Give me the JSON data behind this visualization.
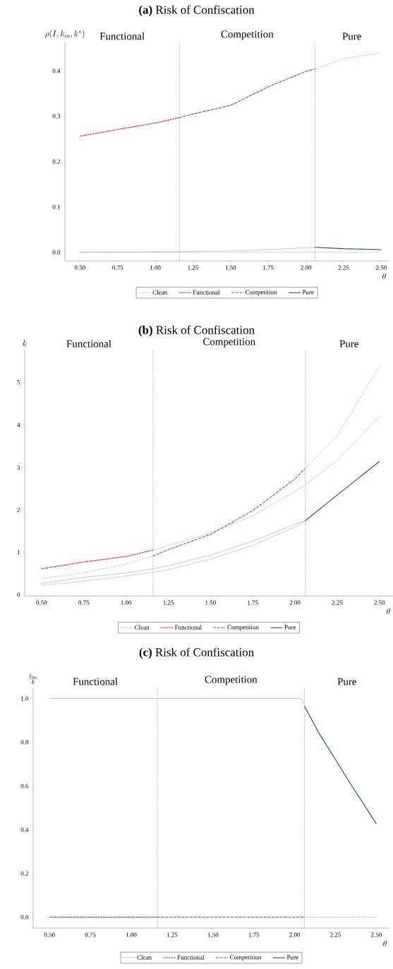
{
  "chart_data": [
    {
      "type": "line",
      "title": "**(a)** Risk of Confiscation",
      "xlabel": "\\theta",
      "ylabel": "\\rho(I,k_m,k^{*})",
      "annotations": [
        "Functional",
        "Competition",
        "Pure"
      ],
      "xlim": [
        0.4,
        2.55
      ],
      "ylim": [
        -0.019,
        0.463
      ],
      "xticks": [
        {
          "value": 0.5,
          "label": "0.50"
        },
        {
          "value": 0.75,
          "label": "0.75"
        },
        {
          "value": 1.0,
          "label": "1.00"
        },
        {
          "value": 1.25,
          "label": "1.25"
        },
        {
          "value": 1.5,
          "label": "1.50"
        },
        {
          "value": 1.75,
          "label": "1.75"
        },
        {
          "value": 2.0,
          "label": "2.00"
        },
        {
          "value": 2.25,
          "label": "2.25"
        },
        {
          "value": 2.5,
          "label": "2.50"
        }
      ],
      "yticks": [
        {
          "value": 0,
          "label": "0.0"
        },
        {
          "value": 0.1,
          "label": "0.1"
        },
        {
          "value": 0.2,
          "label": "0.2"
        },
        {
          "value": 0.3,
          "label": "0.3"
        },
        {
          "value": 0.4,
          "label": "0.4"
        }
      ],
      "ref_lines": [
        {
          "axis": "x",
          "value": 1.16,
          "color": "#9a9a9a",
          "line_style": "dashed"
        },
        {
          "axis": "x",
          "value": 2.06,
          "color": "#9a9a9a",
          "line_style": "dashed"
        }
      ],
      "legend": "bottom",
      "series": [
        {
          "color": "#f0aab8",
          "line_style": "dashed",
          "x": [
            1.16,
            1.25,
            1.5,
            1.75,
            2.0,
            2.06,
            2.25,
            2.5
          ],
          "values": [
            0.297,
            0.305,
            0.324,
            0.365,
            0.399,
            0.404,
            0.427,
            0.44
          ]
        },
        {
          "color": "#b0c4d8",
          "line_style": "solid",
          "x": [
            0.5,
            1.0,
            1.5,
            1.75,
            2.0,
            2.06
          ],
          "values": [
            0,
            0.001,
            0.003,
            0.006,
            0.01,
            0.011
          ]
        },
        {
          "name": "Clean",
          "color": "#a0a0a0",
          "line_style": "dotted",
          "x": [
            0.5,
            2.5
          ],
          "values": [
            0,
            0
          ]
        },
        {
          "name": "Functional",
          "color": "#c8102e",
          "line_style": "dashed",
          "x": [
            0.5,
            0.75,
            1.0,
            1.16
          ],
          "values": [
            0.256,
            0.271,
            0.285,
            0.297
          ]
        },
        {
          "name": "Competition",
          "color": "#1a7a1a",
          "line_style": "dashdot",
          "x": [
            1.16,
            1.25,
            1.5,
            1.75,
            2.0,
            2.06
          ],
          "values": [
            0.297,
            0.305,
            0.324,
            0.365,
            0.399,
            0.404
          ]
        },
        {
          "name": "Pure",
          "color": "#1f4e79",
          "line_style": "solid",
          "x": [
            2.06,
            2.25,
            2.5
          ],
          "values": [
            0.011,
            0.008,
            0.006
          ]
        }
      ]
    },
    {
      "type": "line",
      "title": "**(b)** Risk of Confiscation",
      "xlabel": "\\theta",
      "ylabel": "k",
      "annotations": [
        "Functional",
        "Competition",
        "Pure"
      ],
      "xlim": [
        0.4,
        2.58
      ],
      "ylim": [
        -0.03,
        5.77
      ],
      "xticks": [
        {
          "value": 0.5,
          "label": "0.50"
        },
        {
          "value": 0.75,
          "label": "0.75"
        },
        {
          "value": 1.0,
          "label": "1.00"
        },
        {
          "value": 1.25,
          "label": "1.25"
        },
        {
          "value": 1.5,
          "label": "1.50"
        },
        {
          "value": 1.75,
          "label": "1.75"
        },
        {
          "value": 2.0,
          "label": "2.00"
        },
        {
          "value": 2.25,
          "label": "2.25"
        },
        {
          "value": 2.5,
          "label": "2.50"
        }
      ],
      "yticks": [
        0,
        1,
        2,
        3,
        4,
        5
      ],
      "ref_lines": [
        {
          "axis": "x",
          "value": 1.16,
          "color": "#9a9a9a",
          "line_style": "dashed"
        },
        {
          "axis": "x",
          "value": 2.06,
          "color": "#9a9a9a",
          "line_style": "dashed"
        }
      ],
      "legend": "bottom",
      "series": [
        {
          "color": "#f0aab8",
          "line_style": "dashed",
          "x": [
            1.16,
            1.25,
            1.5,
            1.75,
            2.0,
            2.06,
            2.25,
            2.5
          ],
          "values": [
            1.05,
            1.16,
            1.45,
            1.86,
            2.43,
            2.59,
            3.17,
            4.2
          ]
        },
        {
          "color": "#a8d4a0",
          "line_style": "dashdot",
          "x": [
            0.5,
            0.75,
            1.0,
            1.16,
            1.25,
            1.5,
            1.75,
            2.0,
            2.06,
            2.25,
            2.5
          ],
          "values": [
            0.38,
            0.52,
            0.72,
            0.91,
            null,
            null,
            null,
            null,
            2.97,
            3.75,
            5.39
          ]
        },
        {
          "color": "#b0c4d8",
          "line_style": "solid",
          "x": [
            0.5,
            0.75,
            1.0,
            1.16,
            1.25,
            1.5,
            1.75,
            2.0,
            2.06
          ],
          "values": [
            0.26,
            0.41,
            0.51,
            0.61,
            0.68,
            0.93,
            1.26,
            1.66,
            1.74
          ]
        },
        {
          "name": "Clean",
          "color": "#a0a0a0",
          "line_style": "dotted",
          "x": [
            0.5,
            0.75,
            1.0,
            1.16,
            1.25,
            1.5,
            1.75,
            2.0,
            2.06
          ],
          "values": [
            0.22,
            0.32,
            0.44,
            0.53,
            0.59,
            0.84,
            1.16,
            1.6,
            1.74
          ]
        },
        {
          "name": "Functional",
          "color": "#c8102e",
          "line_style": "dashed",
          "x": [
            0.5,
            0.75,
            1.0,
            1.16
          ],
          "values": [
            0.61,
            0.77,
            0.9,
            1.05
          ]
        },
        {
          "name": "Competition",
          "color": "#1a7a1a",
          "line_style": "dashdot",
          "x": [
            1.16,
            1.25,
            1.5,
            1.75,
            2.0,
            2.06
          ],
          "values": [
            0.91,
            1.06,
            1.42,
            1.98,
            2.73,
            2.97
          ]
        },
        {
          "name": "Pure",
          "color": "#1f4e79",
          "line_style": "solid",
          "x": [
            2.06,
            2.25,
            2.5
          ],
          "values": [
            1.74,
            2.35,
            3.14
          ]
        }
      ]
    },
    {
      "type": "line",
      "title": "**(c)** Risk of Confiscation",
      "xlabel": "\\theta",
      "ylabel": "\\frac{k_m}{k}",
      "annotations": [
        "Functional",
        "Competition",
        "Pure"
      ],
      "xlim": [
        0.4,
        2.58
      ],
      "ylim": [
        -0.05,
        1.05
      ],
      "xticks": [
        {
          "value": 0.5,
          "label": "0.50"
        },
        {
          "value": 0.75,
          "label": "0.75"
        },
        {
          "value": 1.0,
          "label": "1.00"
        },
        {
          "value": 1.25,
          "label": "1.25"
        },
        {
          "value": 1.5,
          "label": "1.50"
        },
        {
          "value": 1.75,
          "label": "1.75"
        },
        {
          "value": 2.0,
          "label": "2.00"
        },
        {
          "value": 2.25,
          "label": "2.25"
        },
        {
          "value": 2.5,
          "label": "2.50"
        }
      ],
      "yticks": [
        {
          "value": 0,
          "label": "0.0"
        },
        {
          "value": 0.2,
          "label": "0.2"
        },
        {
          "value": 0.4,
          "label": "0.4"
        },
        {
          "value": 0.6,
          "label": "0.6"
        },
        {
          "value": 0.8,
          "label": "0.8"
        },
        {
          "value": 1.0,
          "label": "1.0"
        }
      ],
      "ref_lines": [
        {
          "axis": "x",
          "value": 1.16,
          "color": "#9a9a9a",
          "line_style": "dashed"
        },
        {
          "axis": "x",
          "value": 2.06,
          "color": "#9a9a9a",
          "line_style": "dashed"
        }
      ],
      "legend": "bottom",
      "series": [
        {
          "color": "#b0c4d8",
          "line_style": "solid",
          "x": [
            0.5,
            2.04,
            2.06
          ],
          "values": [
            1,
            1,
            0.965
          ]
        },
        {
          "name": "Clean",
          "color": "#a0a0a0",
          "line_style": "dotted",
          "x": [
            2.06,
            2.5
          ],
          "values": [
            0,
            0
          ]
        },
        {
          "name": "Functional",
          "color": "#c8102e",
          "line_style": "dashed",
          "x": [
            0.5,
            1.16
          ],
          "values": [
            0,
            0
          ]
        },
        {
          "name": "Competition",
          "color": "#1a7a1a",
          "line_style": "dashdot",
          "x": [
            1.16,
            2.06
          ],
          "values": [
            0,
            0
          ]
        },
        {
          "name": "Pure",
          "color": "#1f4e79",
          "line_style": "solid",
          "x": [
            2.06,
            2.15,
            2.25,
            2.35,
            2.5
          ],
          "values": [
            0.965,
            0.84,
            0.72,
            0.6,
            0.427
          ]
        }
      ]
    }
  ]
}
